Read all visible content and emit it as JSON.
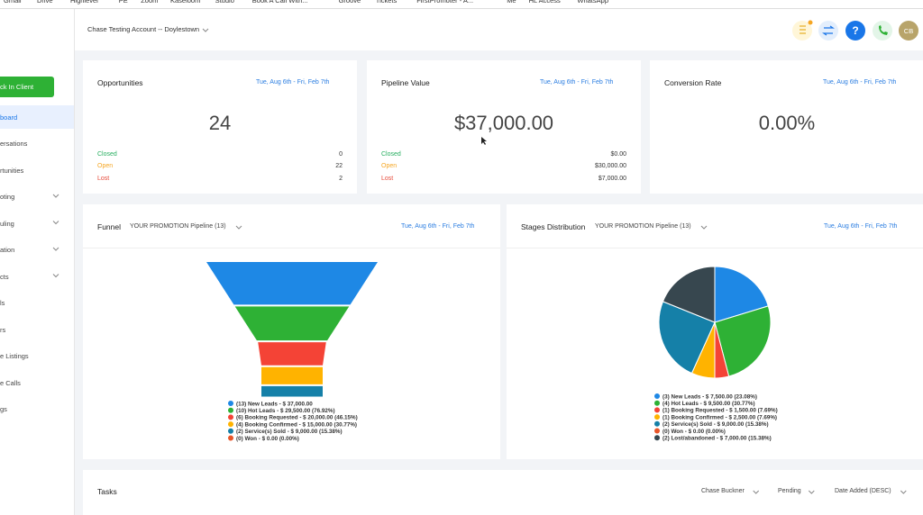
{
  "bookmarks": [
    "Gmail",
    "Drive",
    "Highlevel",
    "PE",
    "Zoom",
    "Kaseloom",
    "Studio",
    "Book A Call With...",
    "Groove",
    "Tickets",
    "FirstPromoter - A...",
    "Me",
    "HL Access",
    "WhatsApp"
  ],
  "sidebar": {
    "button": "ck In Client",
    "active": "board",
    "items": [
      "ersations",
      "rtunities",
      "oting",
      "uling",
      "ation",
      "cts",
      "ls",
      "rs",
      "e Listings",
      "e Calls",
      "gs"
    ]
  },
  "header": {
    "account": "Chase Testing Account -- Doylestown",
    "help": "?",
    "avatar": "CB"
  },
  "cards": [
    {
      "title": "Opportunities",
      "date": "Tue, Aug 6th - Fri, Feb 7th",
      "value": "24",
      "rows": [
        {
          "label": "Closed",
          "value": "0"
        },
        {
          "label": "Open",
          "value": "22"
        },
        {
          "label": "Lost",
          "value": "2"
        }
      ]
    },
    {
      "title": "Pipeline Value",
      "date": "Tue, Aug 6th - Fri, Feb 7th",
      "value": "$37,000.00",
      "rows": [
        {
          "label": "Closed",
          "value": "$0.00"
        },
        {
          "label": "Open",
          "value": "$30,000.00"
        },
        {
          "label": "Lost",
          "value": "$7,000.00"
        }
      ]
    },
    {
      "title": "Conversion Rate",
      "date": "Tue, Aug 6th - Fri, Feb 7th",
      "value": "0.00%",
      "rows": []
    }
  ],
  "funnel": {
    "title": "Funnel",
    "pipeline": "YOUR PROMOTION Pipeline (13)",
    "date": "Tue, Aug 6th - Fri, Feb 7th",
    "values": [
      37000,
      29500,
      20000,
      15000,
      9000,
      0
    ],
    "colors": [
      "#1e88e5",
      "#2eb135",
      "#f44336",
      "#ffb300",
      "#1580a8",
      "#e8562a"
    ],
    "legend": [
      "(13) New Leads - $ 37,000.00",
      "(10) Hot Leads - $ 29,500.00 (76.92%)",
      "(6) Booking Requested - $ 20,000.00 (46.15%)",
      "(4) Booking Confirmed - $ 15,000.00 (30.77%)",
      "(2) Service(s) Sold - $ 9,000.00 (15.38%)",
      "(0) Won - $ 0.00 (0.00%)"
    ]
  },
  "stages": {
    "title": "Stages Distribution",
    "pipeline": "YOUR PROMOTION Pipeline (13)",
    "date": "Tue, Aug 6th - Fri, Feb 7th",
    "values": [
      7500,
      9500,
      1500,
      2500,
      9000,
      0,
      7000
    ],
    "colors": [
      "#1e88e5",
      "#2eb135",
      "#f44336",
      "#ffb300",
      "#1580a8",
      "#e8562a",
      "#37474f"
    ],
    "legend": [
      "(3) New Leads - $ 7,500.00 (23.08%)",
      "(4) Hot Leads - $ 9,500.00 (30.77%)",
      "(1) Booking Requested - $ 1,500.00 (7.69%)",
      "(1) Booking Confirmed - $ 2,500.00 (7.69%)",
      "(2) Service(s) Sold - $ 9,000.00 (15.38%)",
      "(0) Won - $ 0.00 (0.00%)",
      "(2) Lost/abandoned - $ 7,000.00 (15.38%)"
    ]
  },
  "tasks": {
    "title": "Tasks",
    "filters": [
      "Chase Buckner",
      "Pending",
      "Date Added (DESC)"
    ]
  }
}
